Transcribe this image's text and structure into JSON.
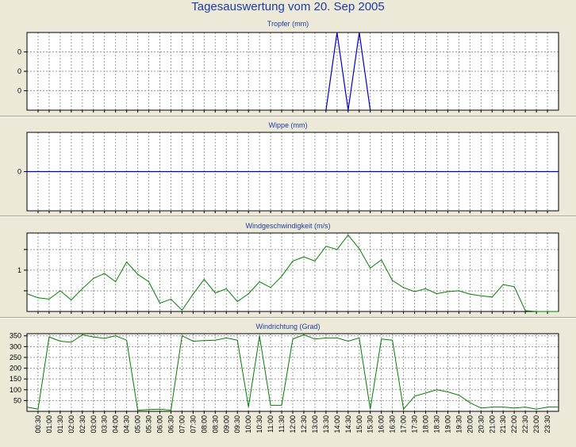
{
  "title": "Tagesauswertung vom 20. Sep 2005",
  "colors": {
    "blue": "#0000CC",
    "green": "#008000",
    "title": "#1F3DA8"
  },
  "x_labels": [
    "00:30",
    "01:00",
    "01:30",
    "02:00",
    "02:30",
    "03:00",
    "03:30",
    "04:00",
    "04:30",
    "05:00",
    "05:30",
    "06:00",
    "06:30",
    "07:00",
    "07:30",
    "08:00",
    "08:30",
    "09:00",
    "09:30",
    "10:00",
    "10:30",
    "11:00",
    "11:30",
    "12:00",
    "12:30",
    "13:00",
    "13:30",
    "14:00",
    "14:30",
    "15:00",
    "15:30",
    "16:00",
    "16:30",
    "17:00",
    "17:30",
    "18:00",
    "18:30",
    "19:00",
    "19:30",
    "20:00",
    "20:30",
    "21:00",
    "21:30",
    "22:00",
    "22:30",
    "23:00",
    "23:30"
  ],
  "chart_data": [
    {
      "type": "line",
      "title": "Tropfer (mm)",
      "ylim": [
        0,
        0.08
      ],
      "yticks": [
        0.02,
        0.04,
        0.06
      ],
      "ytick_labels": [
        "0",
        "0",
        "0"
      ],
      "x": [
        "00:00",
        "00:30",
        "01:00",
        "01:30",
        "02:00",
        "02:30",
        "03:00",
        "03:30",
        "04:00",
        "04:30",
        "05:00",
        "05:30",
        "06:00",
        "06:30",
        "07:00",
        "07:30",
        "08:00",
        "08:30",
        "09:00",
        "09:30",
        "10:00",
        "10:30",
        "11:00",
        "11:30",
        "12:00",
        "12:30",
        "13:00",
        "13:30",
        "14:00",
        "14:30",
        "15:00",
        "15:30",
        "16:00",
        "16:30",
        "17:00",
        "17:30",
        "18:00",
        "18:30",
        "19:00",
        "19:30",
        "20:00",
        "20:30",
        "21:00",
        "21:30",
        "22:00",
        "22:30",
        "23:00",
        "23:30",
        "24:00"
      ],
      "series": [
        {
          "color": "#0000CC",
          "values": [
            0,
            0,
            0,
            0,
            0,
            0,
            0,
            0,
            0,
            0,
            0,
            0,
            0,
            0,
            0,
            0,
            0,
            0,
            0,
            0,
            0,
            0,
            0,
            0,
            0,
            0,
            0,
            0,
            0.08,
            0,
            0.08,
            0,
            0,
            0,
            0,
            0,
            0,
            0,
            0,
            0,
            0,
            0,
            0,
            0,
            0,
            0,
            0,
            0,
            0
          ],
          "visible_from": "13:30",
          "visible_to": "15:30"
        }
      ]
    },
    {
      "type": "line",
      "title": "Wippe (mm)",
      "ylim": [
        -1,
        1
      ],
      "yticks": [
        0
      ],
      "ytick_labels": [
        "0"
      ],
      "series": [
        {
          "color": "#0000CC",
          "values": [
            0,
            0
          ],
          "x": [
            "00:00",
            "24:00"
          ]
        }
      ]
    },
    {
      "type": "line",
      "title": "Windgeschwindigkeit (m/s)",
      "ylim": [
        0,
        1.9
      ],
      "yticks": [
        0.5,
        1.0,
        1.5
      ],
      "ytick_labels": [
        "",
        "1",
        ""
      ],
      "x": [
        "00:00",
        "00:30",
        "01:00",
        "01:30",
        "02:00",
        "02:30",
        "03:00",
        "03:30",
        "04:00",
        "04:30",
        "05:00",
        "05:30",
        "06:00",
        "06:30",
        "07:00",
        "07:30",
        "08:00",
        "08:30",
        "09:00",
        "09:30",
        "10:00",
        "10:30",
        "11:00",
        "11:30",
        "12:00",
        "12:30",
        "13:00",
        "13:30",
        "14:00",
        "14:30",
        "15:00",
        "15:30",
        "16:00",
        "16:30",
        "17:00",
        "17:30",
        "18:00",
        "18:30",
        "19:00",
        "19:30",
        "20:00",
        "20:30",
        "21:00",
        "21:30",
        "22:00",
        "22:30",
        "23:00",
        "23:30",
        "24:00"
      ],
      "series": [
        {
          "color": "#008000",
          "values": [
            0.43,
            0.33,
            0.3,
            0.5,
            0.28,
            0.55,
            0.8,
            0.92,
            0.72,
            1.2,
            0.9,
            0.72,
            0.2,
            0.3,
            0.03,
            0.42,
            0.78,
            0.45,
            0.55,
            0.24,
            0.43,
            0.72,
            0.58,
            0.85,
            1.22,
            1.32,
            1.22,
            1.58,
            1.5,
            1.85,
            1.52,
            1.05,
            1.25,
            0.75,
            0.58,
            0.48,
            0.55,
            0.43,
            0.48,
            0.5,
            0.42,
            0.38,
            0.35,
            0.65,
            0.6,
            0.02,
            0.0,
            0.0,
            0.0
          ]
        }
      ]
    },
    {
      "type": "line",
      "title": "Windrichtung (Grad)",
      "ylim": [
        0,
        360
      ],
      "yticks": [
        50,
        100,
        150,
        200,
        250,
        300,
        350
      ],
      "ytick_labels": [
        "50",
        "100",
        "150",
        "200",
        "250",
        "300",
        "350"
      ],
      "x": [
        "00:00",
        "00:30",
        "01:00",
        "01:30",
        "02:00",
        "02:30",
        "03:00",
        "03:30",
        "04:00",
        "04:30",
        "05:00",
        "05:30",
        "06:00",
        "06:30",
        "07:00",
        "07:30",
        "08:00",
        "08:30",
        "09:00",
        "09:30",
        "10:00",
        "10:30",
        "11:00",
        "11:30",
        "12:00",
        "12:30",
        "13:00",
        "13:30",
        "14:00",
        "14:30",
        "15:00",
        "15:30",
        "16:00",
        "16:30",
        "17:00",
        "17:30",
        "18:00",
        "18:30",
        "19:00",
        "19:30",
        "20:00",
        "20:30",
        "21:00",
        "21:30",
        "22:00",
        "22:30",
        "23:00",
        "23:30",
        "24:00"
      ],
      "series": [
        {
          "color": "#008000",
          "values": [
            20,
            10,
            345,
            325,
            320,
            355,
            345,
            338,
            350,
            330,
            5,
            8,
            10,
            5,
            350,
            325,
            328,
            330,
            340,
            330,
            20,
            350,
            28,
            28,
            335,
            355,
            335,
            340,
            340,
            325,
            340,
            10,
            335,
            330,
            10,
            70,
            85,
            100,
            90,
            75,
            40,
            15,
            20,
            20,
            15,
            20,
            10,
            20,
            20
          ]
        }
      ]
    }
  ]
}
